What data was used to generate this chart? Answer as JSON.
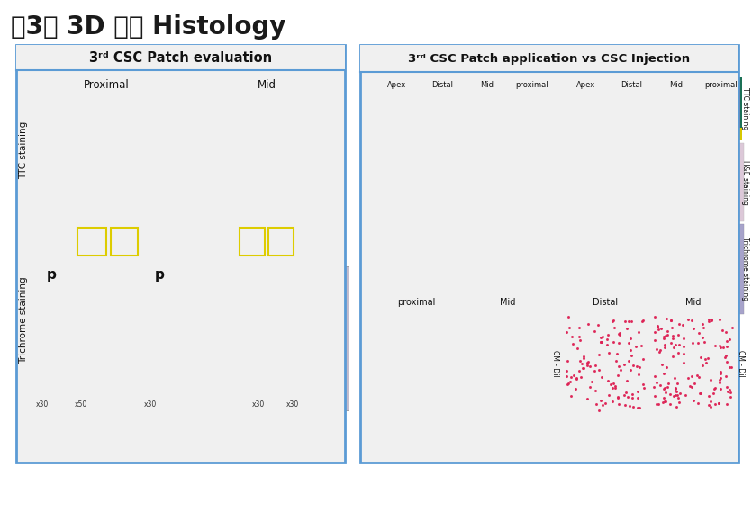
{
  "title": "제3형 3D 패치 Histology",
  "title_fontsize": 20,
  "bg_color": "#ffffff",
  "box_color": "#5b9bd5",
  "left_box_title": "3ʳᵈ CSC Patch evaluation",
  "right_box_title": "3ʳᵈ CSC Patch application vs CSC Injection",
  "left_col_labels": [
    "Proximal",
    "Mid"
  ],
  "right_col_labels": [
    "Apex",
    "Distal",
    "Mid",
    "proximal"
  ],
  "left_side_labels": [
    "TTC staining",
    "Trichrome staining"
  ],
  "right_side_labels": [
    "TTC staining",
    "H&E staining",
    "Trichrome staining"
  ],
  "bottom_labels_left": [
    "proximal",
    "Mid"
  ],
  "bottom_labels_right": [
    "Distal",
    "Mid"
  ],
  "cm_dil_label": "CM - DiI",
  "colors": {
    "green_bg": "#2e7d32",
    "red_heart": "#b71c1c",
    "teal_bg": "#00695c",
    "trichrome_slide": "#b0a8c8",
    "trichrome_light": "#c8c0d8",
    "trichrome_white": "#e8e4f0",
    "he_pink": "#e8c8d8",
    "he_pink2": "#ddbbd0",
    "trichrome_red": "#a03040",
    "trichrome_blue": "#8888cc",
    "blue_dark": "#1a1a8a",
    "blue_mid": "#141460",
    "navy_red": "#2a1040",
    "navy_red2": "#221038",
    "yellow_label": "#e8d000",
    "white": "#ffffff",
    "gray_bg": "#f0f0f0"
  }
}
